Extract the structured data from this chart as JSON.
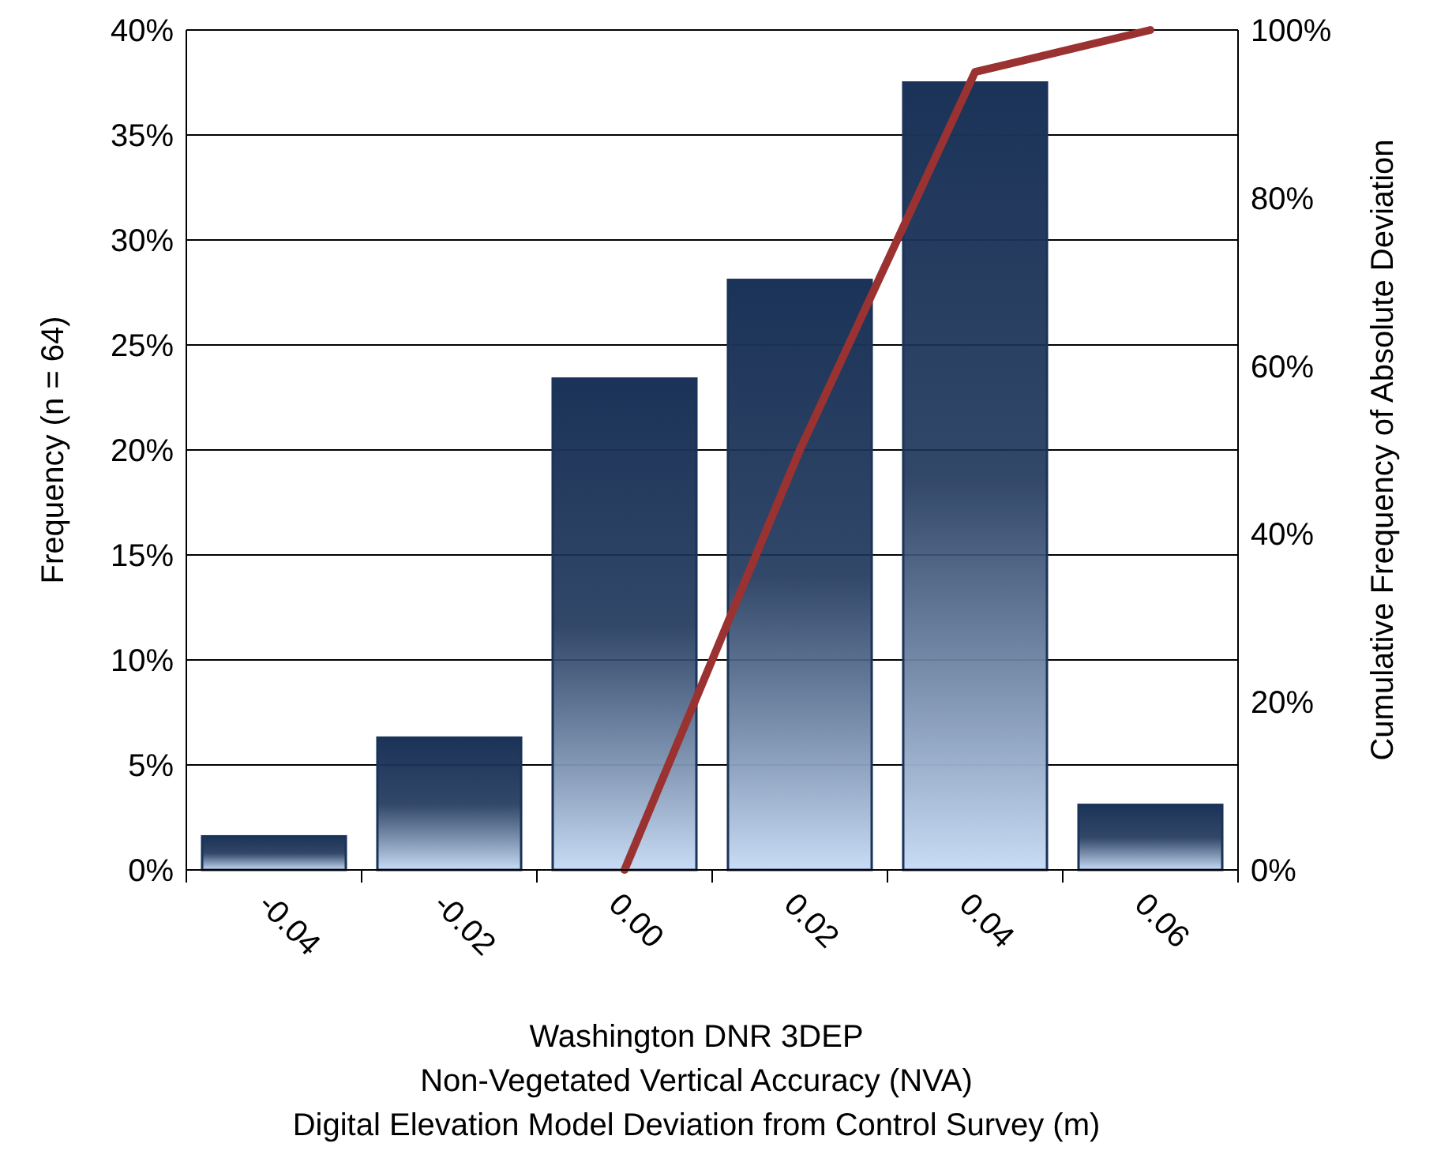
{
  "chart_data": {
    "type": "bar",
    "categories": [
      "-0.04",
      "-0.02",
      "0.00",
      "0.02",
      "0.04",
      "0.06"
    ],
    "xlabel": "Washington DNR 3DEP\nNon-Vegetated Vertical Accuracy (NVA)\nDigital Elevation Model Deviation from Control Survey (m)",
    "ylabel": "Frequency (n = 64)",
    "y2label": "Cumulative Frequency of Absolute Deviation",
    "ylim": [
      0,
      40
    ],
    "yticks": [
      {
        "value": 0,
        "label": "0%"
      },
      {
        "value": 5,
        "label": "5%"
      },
      {
        "value": 10,
        "label": "10%"
      },
      {
        "value": 15,
        "label": "15%"
      },
      {
        "value": 20,
        "label": "20%"
      },
      {
        "value": 25,
        "label": "25%"
      },
      {
        "value": 30,
        "label": "30%"
      },
      {
        "value": 35,
        "label": "35%"
      },
      {
        "value": 40,
        "label": "40%"
      }
    ],
    "y2lim": [
      0,
      100
    ],
    "y2ticks": [
      {
        "value": 0,
        "label": "0%"
      },
      {
        "value": 20,
        "label": "20%"
      },
      {
        "value": 40,
        "label": "40%"
      },
      {
        "value": 60,
        "label": "60%"
      },
      {
        "value": 80,
        "label": "80%"
      },
      {
        "value": 100,
        "label": "100%"
      }
    ],
    "grid": "y",
    "series": [
      {
        "color": "#1b3358",
        "values": [
          1.6,
          6.3,
          23.4,
          28.1,
          37.5,
          3.1
        ]
      },
      {
        "type": "line",
        "axis": "y2",
        "color": "#9b3232",
        "values": [
          null,
          null,
          0,
          50,
          95,
          100
        ]
      }
    ]
  }
}
